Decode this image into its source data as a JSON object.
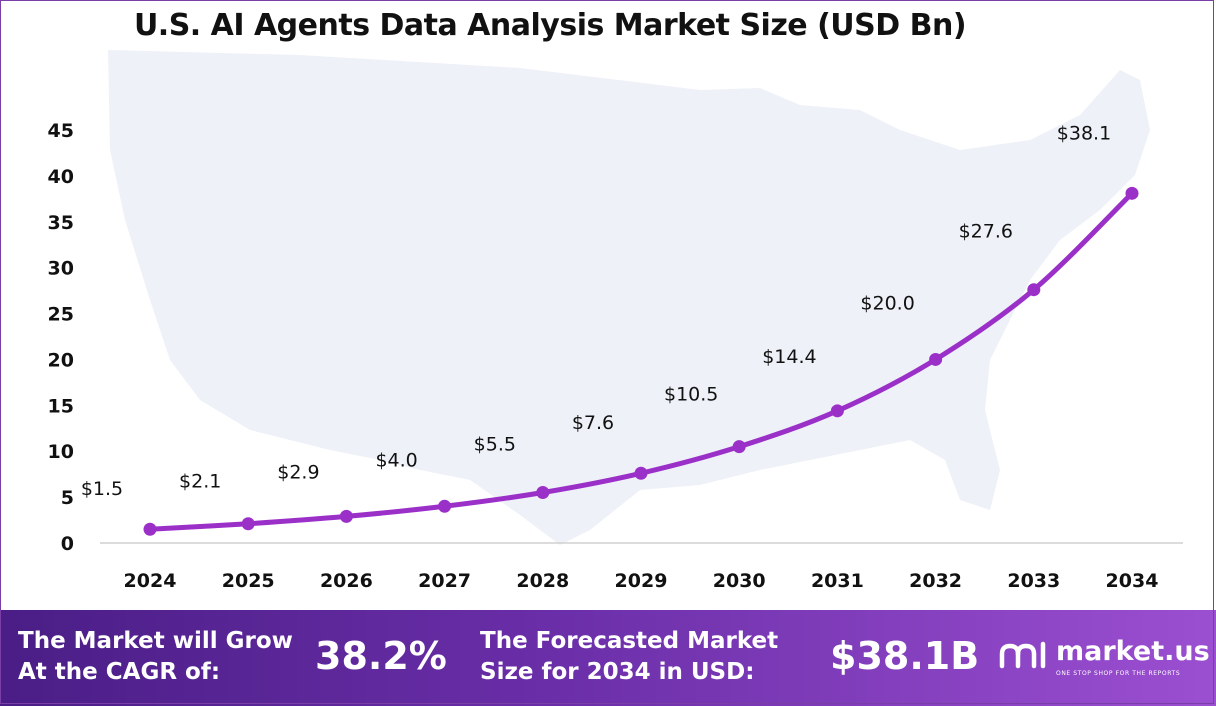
{
  "title": "U.S. AI Agents Data Analysis Market Size (USD Bn)",
  "chart_data": {
    "type": "line",
    "title": "U.S. AI Agents Data Analysis Market Size (USD Bn)",
    "x": [
      "2024",
      "2025",
      "2026",
      "2027",
      "2028",
      "2029",
      "2030",
      "2031",
      "2032",
      "2033",
      "2034"
    ],
    "values": [
      1.5,
      2.1,
      2.9,
      4.0,
      5.5,
      7.6,
      10.5,
      14.4,
      20.0,
      27.6,
      38.1
    ],
    "data_labels": [
      "$1.5",
      "$2.1",
      "$2.9",
      "$4.0",
      "$5.5",
      "$7.6",
      "$10.5",
      "$14.4",
      "$20.0",
      "$27.6",
      "$38.1"
    ],
    "yticks": [
      "0",
      "5",
      "10",
      "15",
      "20",
      "25",
      "30",
      "35",
      "40",
      "45"
    ],
    "ylim": [
      0,
      45
    ],
    "xlabel": "",
    "ylabel": "",
    "grid": false,
    "line_color": "#9b30c9"
  },
  "footer": {
    "cagr_label": "The Market will Grow\nAt the CAGR of:",
    "cagr_value": "38.2%",
    "forecast_label": "The Forecasted Market\nSize for 2034 in USD:",
    "forecast_value": "$38.1B",
    "brand_name": "market.us",
    "brand_tagline": "ONE STOP SHOP FOR THE REPORTS"
  }
}
